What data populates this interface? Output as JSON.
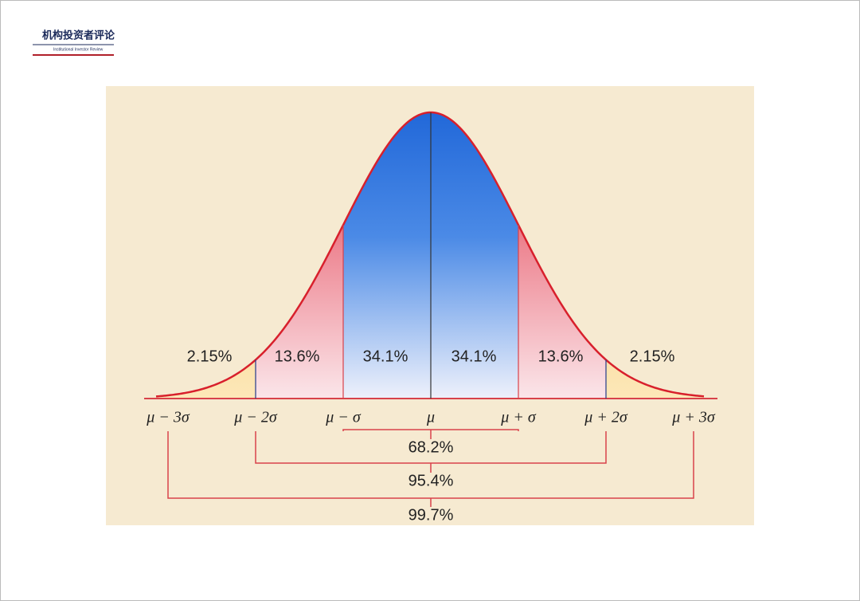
{
  "header": {
    "title": "机构投资者评论",
    "subtitle": "Institutional Investor Review"
  },
  "regions": [
    {
      "label": "2.15%"
    },
    {
      "label": "13.6%"
    },
    {
      "label": "34.1%"
    },
    {
      "label": "34.1%"
    },
    {
      "label": "13.6%"
    },
    {
      "label": "2.15%"
    }
  ],
  "axis_labels": [
    "μ − 3σ",
    "μ − 2σ",
    "μ − σ",
    "μ",
    "μ + σ",
    "μ + 2σ",
    "μ + 3σ"
  ],
  "ranges": [
    {
      "label": "68.2%"
    },
    {
      "label": "95.4%"
    },
    {
      "label": "99.7%"
    }
  ]
}
